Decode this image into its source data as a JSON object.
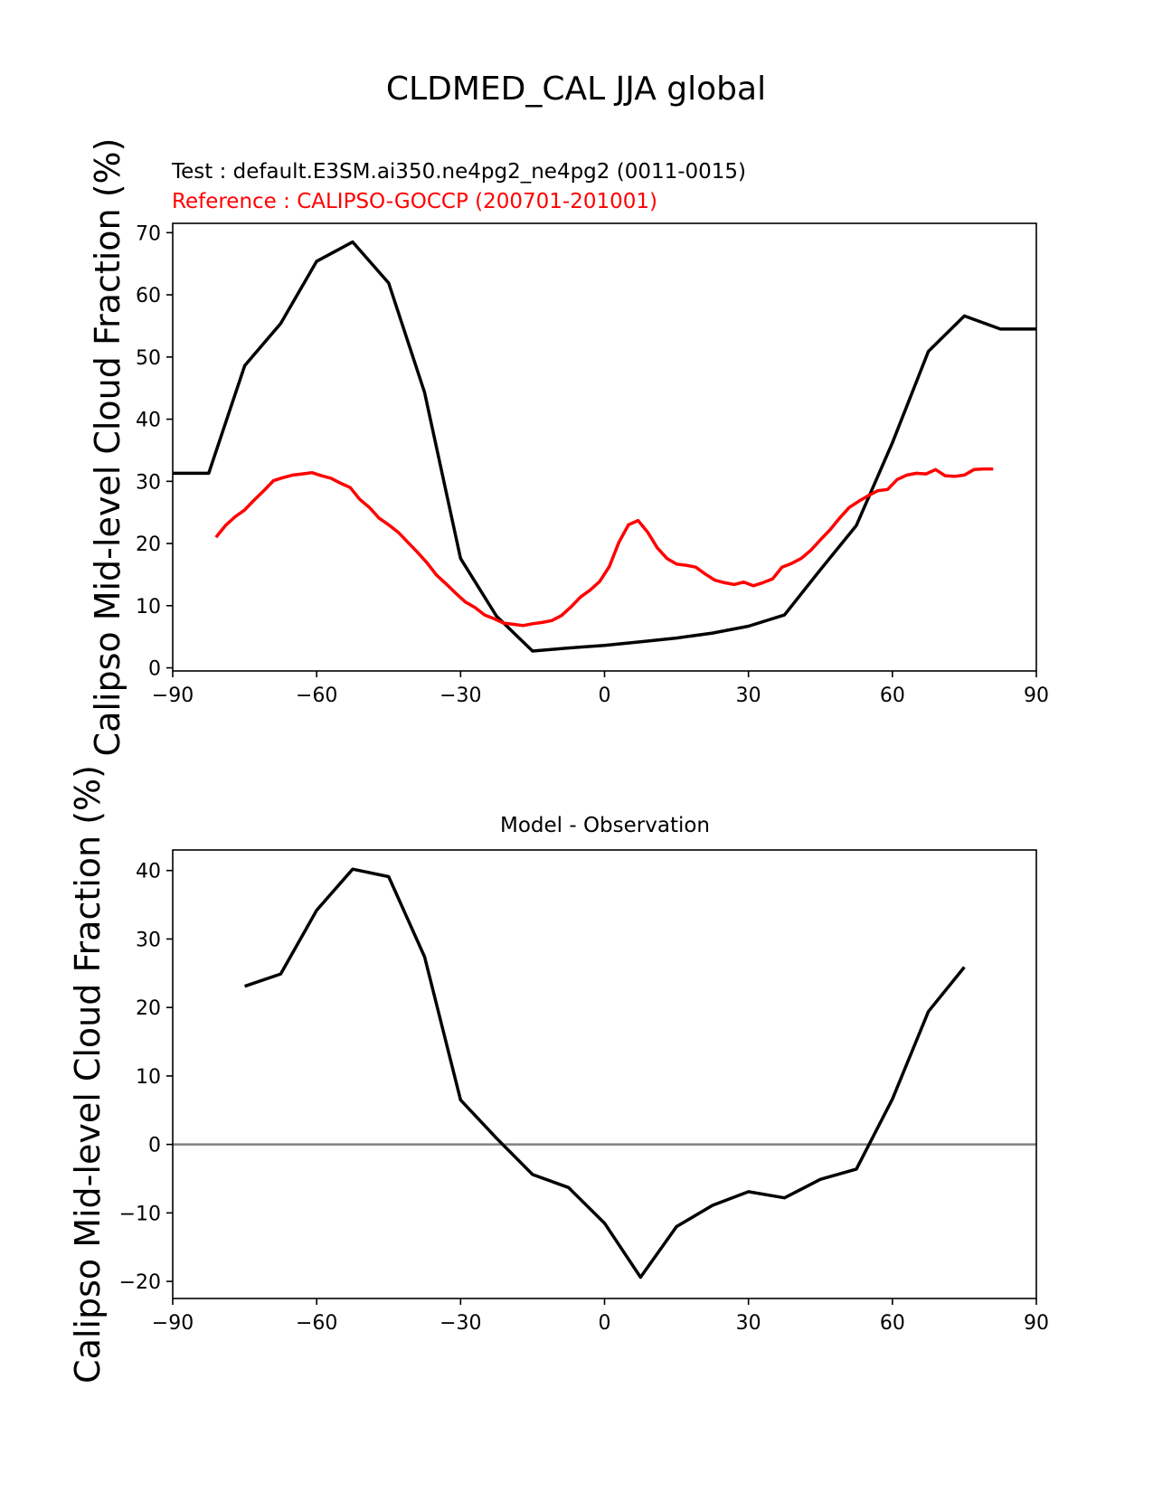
{
  "figure": {
    "title": "CLDMED_CAL JJA global"
  },
  "chart_data": [
    {
      "type": "line",
      "test_label": "Test : default.E3SM.ai350.ne4pg2_ne4pg2 (0011-0015)",
      "reference_label": "Reference : CALIPSO-GOCCP (200701-201001)",
      "ylabel": "Calipso Mid-level Cloud Fraction (%)",
      "xlim": [
        -90,
        90
      ],
      "ylim": [
        -0.5,
        71.5
      ],
      "xticks": [
        -90,
        -60,
        -30,
        0,
        30,
        60,
        90
      ],
      "yticks": [
        0,
        10,
        20,
        30,
        40,
        50,
        60,
        70
      ],
      "xtick_labels": [
        "−90",
        "−60",
        "−30",
        "0",
        "30",
        "60",
        "90"
      ],
      "ytick_labels": [
        "0",
        "10",
        "20",
        "30",
        "40",
        "50",
        "60",
        "70"
      ],
      "grid": false,
      "series": [
        {
          "color": "#000000",
          "x": [
            -90,
            -82.5,
            -75,
            -67.5,
            -60,
            -52.5,
            -45,
            -37.5,
            -30,
            -22.5,
            -15,
            -7.5,
            0,
            7.5,
            15,
            22.5,
            30,
            37.5,
            45,
            52.5,
            60,
            67.5,
            75,
            82.5,
            90
          ],
          "y": [
            31.3,
            31.3,
            48.6,
            55.4,
            65.4,
            68.5,
            61.9,
            44.3,
            17.6,
            8.3,
            2.7,
            3.2,
            3.6,
            4.2,
            4.8,
            5.6,
            6.7,
            8.5,
            15.8,
            22.9,
            36.2,
            50.9,
            56.6,
            54.5,
            54.5
          ]
        },
        {
          "color": "#ff0000",
          "x": [
            -81,
            -79,
            -77,
            -75,
            -73,
            -71,
            -69,
            -67,
            -65,
            -63,
            -61,
            -59,
            -57,
            -55,
            -53,
            -51,
            -49,
            -47,
            -45,
            -43,
            -41,
            -39,
            -37,
            -35,
            -33,
            -31,
            -29,
            -27,
            -25,
            -23,
            -21,
            -19,
            -17,
            -15,
            -13,
            -11,
            -9,
            -7,
            -5,
            -3,
            -1,
            1,
            3,
            5,
            7,
            9,
            11,
            13,
            15,
            17,
            19,
            21,
            23,
            25,
            27,
            29,
            31,
            33,
            35,
            37,
            39,
            41,
            43,
            45,
            47,
            49,
            51,
            53,
            55,
            57,
            59,
            61,
            63,
            65,
            67,
            69,
            71,
            73,
            75,
            77,
            79,
            81
          ],
          "y": [
            21.0,
            22.9,
            24.3,
            25.4,
            27.0,
            28.5,
            30.1,
            30.6,
            31.0,
            31.2,
            31.4,
            30.9,
            30.5,
            29.7,
            29.0,
            27.1,
            25.8,
            24.1,
            23.0,
            21.8,
            20.2,
            18.6,
            16.9,
            14.9,
            13.5,
            12.0,
            10.6,
            9.7,
            8.5,
            7.9,
            7.2,
            7.0,
            6.8,
            7.1,
            7.3,
            7.6,
            8.4,
            9.8,
            11.4,
            12.5,
            13.9,
            16.3,
            20.2,
            23.0,
            23.7,
            21.8,
            19.3,
            17.6,
            16.7,
            16.5,
            16.2,
            15.1,
            14.1,
            13.7,
            13.4,
            13.8,
            13.2,
            13.7,
            14.3,
            16.2,
            16.8,
            17.6,
            18.9,
            20.6,
            22.2,
            24.1,
            25.8,
            26.8,
            27.7,
            28.5,
            28.7,
            30.3,
            31.0,
            31.3,
            31.2,
            31.9,
            30.9,
            30.8,
            31.0,
            31.9,
            32.0,
            32.0
          ]
        }
      ]
    },
    {
      "type": "line",
      "title": "Model - Observation",
      "ylabel": "Calipso Mid-level Cloud Fraction (%)",
      "xlim": [
        -90,
        90
      ],
      "ylim": [
        -22.5,
        43
      ],
      "xticks": [
        -90,
        -60,
        -30,
        0,
        30,
        60,
        90
      ],
      "yticks": [
        -20,
        -10,
        0,
        10,
        20,
        30,
        40
      ],
      "xtick_labels": [
        "−90",
        "−60",
        "−30",
        "0",
        "30",
        "60",
        "90"
      ],
      "ytick_labels": [
        "−20",
        "−10",
        "0",
        "10",
        "20",
        "30",
        "40"
      ],
      "zero_line_color": "#808080",
      "grid": false,
      "series": [
        {
          "color": "#000000",
          "x": [
            -75,
            -67.5,
            -60,
            -52.5,
            -45,
            -37.5,
            -30,
            -22.5,
            -15,
            -7.5,
            0,
            7.5,
            15,
            22.5,
            30,
            37.5,
            45,
            52.5,
            60,
            67.5,
            75
          ],
          "y": [
            23.1,
            24.9,
            34.2,
            40.2,
            39.1,
            27.4,
            6.5,
            0.9,
            -4.4,
            -6.3,
            -11.5,
            -19.4,
            -12.0,
            -8.9,
            -6.9,
            -7.8,
            -5.1,
            -3.6,
            6.6,
            19.4,
            25.9
          ]
        }
      ]
    }
  ]
}
